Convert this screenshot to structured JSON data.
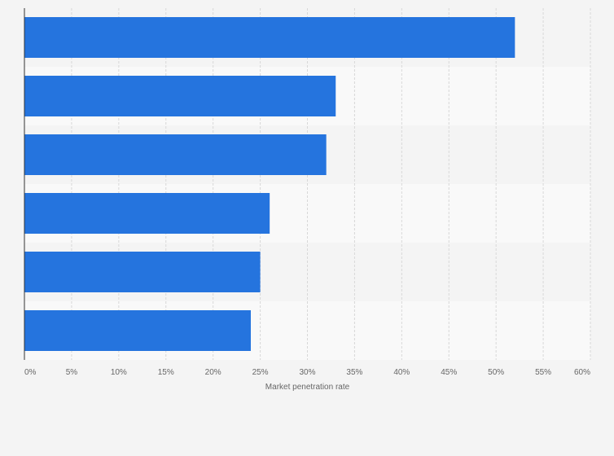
{
  "chart_data": {
    "type": "bar",
    "orientation": "horizontal",
    "categories": [
      "",
      "",
      "",
      "",
      "",
      ""
    ],
    "values": [
      52,
      33,
      32,
      26,
      25,
      24
    ],
    "xlabel": "Market penetration rate",
    "ylabel": "",
    "xlim": [
      0,
      60
    ],
    "x_ticks": [
      "0%",
      "5%",
      "10%",
      "15%",
      "20%",
      "25%",
      "30%",
      "35%",
      "40%",
      "45%",
      "50%",
      "55%",
      "60%"
    ],
    "grid": "vertical dashed",
    "bar_color": "#2574de",
    "band_colors": [
      "#f4f4f4",
      "#f9f9f9"
    ]
  }
}
